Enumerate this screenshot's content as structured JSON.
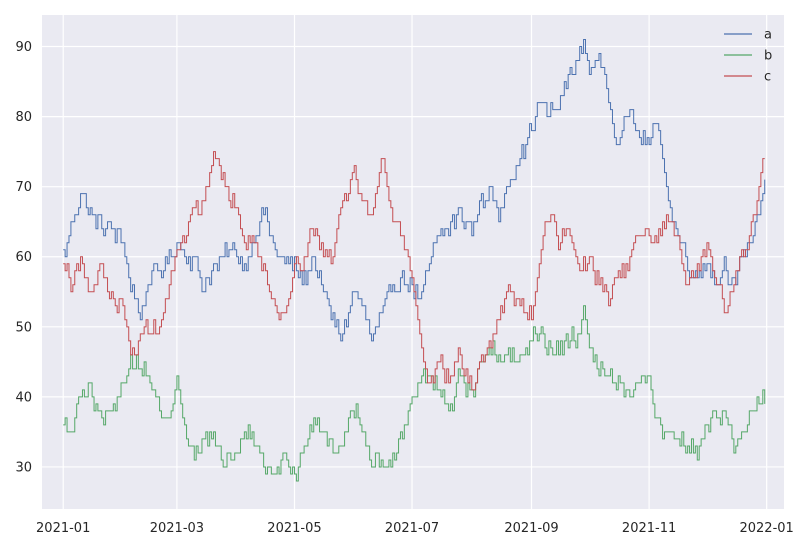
{
  "chart_data": {
    "type": "line",
    "x_start": "2021-01-01",
    "x_end": "2021-12-31",
    "x_step": "1 day",
    "xlim": [
      "2020-12-21",
      "2022-01-10"
    ],
    "ylim": [
      24,
      94.5
    ],
    "x_ticks": [
      "2021-01",
      "2021-03",
      "2021-05",
      "2021-07",
      "2021-09",
      "2021-11",
      "2022-01"
    ],
    "y_ticks": [
      30,
      40,
      50,
      60,
      70,
      80,
      90
    ],
    "title": "",
    "xlabel": "",
    "ylabel": "",
    "grid": true,
    "legend_position": "top-right",
    "series": [
      {
        "name": "a",
        "color": "#4c72b0",
        "keypoints": [
          [
            "2021-01-01",
            60
          ],
          [
            "2021-01-05",
            65
          ],
          [
            "2021-01-10",
            69
          ],
          [
            "2021-01-15",
            66
          ],
          [
            "2021-01-25",
            64
          ],
          [
            "2021-02-01",
            62
          ],
          [
            "2021-02-05",
            56
          ],
          [
            "2021-02-10",
            52
          ],
          [
            "2021-02-15",
            57
          ],
          [
            "2021-02-20",
            58
          ],
          [
            "2021-03-01",
            62
          ],
          [
            "2021-03-10",
            59
          ],
          [
            "2021-03-15",
            56
          ],
          [
            "2021-03-25",
            60
          ],
          [
            "2021-04-01",
            61
          ],
          [
            "2021-04-05",
            58
          ],
          [
            "2021-04-10",
            63
          ],
          [
            "2021-04-15",
            66
          ],
          [
            "2021-04-20",
            62
          ],
          [
            "2021-04-25",
            59
          ],
          [
            "2021-05-01",
            59
          ],
          [
            "2021-05-05",
            56
          ],
          [
            "2021-05-10",
            60
          ],
          [
            "2021-05-15",
            56
          ],
          [
            "2021-05-20",
            51
          ],
          [
            "2021-05-25",
            49
          ],
          [
            "2021-06-01",
            55
          ],
          [
            "2021-06-05",
            53
          ],
          [
            "2021-06-10",
            48
          ],
          [
            "2021-06-15",
            51
          ],
          [
            "2021-06-20",
            56
          ],
          [
            "2021-06-25",
            57
          ],
          [
            "2021-07-01",
            56
          ],
          [
            "2021-07-05",
            53
          ],
          [
            "2021-07-10",
            59
          ],
          [
            "2021-07-15",
            63
          ],
          [
            "2021-07-20",
            64
          ],
          [
            "2021-07-25",
            66
          ],
          [
            "2021-08-01",
            64
          ],
          [
            "2021-08-05",
            68
          ],
          [
            "2021-08-10",
            69
          ],
          [
            "2021-08-15",
            66
          ],
          [
            "2021-08-20",
            71
          ],
          [
            "2021-08-25",
            74
          ],
          [
            "2021-08-30",
            77
          ],
          [
            "2021-09-05",
            82
          ],
          [
            "2021-09-10",
            80
          ],
          [
            "2021-09-15",
            82
          ],
          [
            "2021-09-20",
            86
          ],
          [
            "2021-09-25",
            88
          ],
          [
            "2021-09-28",
            91
          ],
          [
            "2021-10-01",
            86
          ],
          [
            "2021-10-05",
            89
          ],
          [
            "2021-10-10",
            83
          ],
          [
            "2021-10-15",
            76
          ],
          [
            "2021-10-20",
            81
          ],
          [
            "2021-10-25",
            78
          ],
          [
            "2021-11-01",
            76
          ],
          [
            "2021-11-05",
            79
          ],
          [
            "2021-11-10",
            68
          ],
          [
            "2021-11-15",
            64
          ],
          [
            "2021-11-20",
            60
          ],
          [
            "2021-11-25",
            57
          ],
          [
            "2021-12-01",
            60
          ],
          [
            "2021-12-05",
            56
          ],
          [
            "2021-12-10",
            59
          ],
          [
            "2021-12-15",
            56
          ],
          [
            "2021-12-20",
            60
          ],
          [
            "2021-12-25",
            64
          ],
          [
            "2021-12-31",
            71
          ]
        ]
      },
      {
        "name": "b",
        "color": "#55a868",
        "keypoints": [
          [
            "2021-01-01",
            36
          ],
          [
            "2021-01-05",
            35
          ],
          [
            "2021-01-10",
            40
          ],
          [
            "2021-01-15",
            41
          ],
          [
            "2021-01-20",
            37
          ],
          [
            "2021-01-25",
            37
          ],
          [
            "2021-02-01",
            42
          ],
          [
            "2021-02-05",
            45
          ],
          [
            "2021-02-10",
            44
          ],
          [
            "2021-02-15",
            43
          ],
          [
            "2021-02-20",
            38
          ],
          [
            "2021-02-25",
            38
          ],
          [
            "2021-03-01",
            42
          ],
          [
            "2021-03-05",
            36
          ],
          [
            "2021-03-10",
            31
          ],
          [
            "2021-03-15",
            34
          ],
          [
            "2021-03-20",
            34
          ],
          [
            "2021-03-25",
            31
          ],
          [
            "2021-04-01",
            31
          ],
          [
            "2021-04-05",
            36
          ],
          [
            "2021-04-10",
            34
          ],
          [
            "2021-04-15",
            30
          ],
          [
            "2021-04-20",
            28
          ],
          [
            "2021-04-25",
            31
          ],
          [
            "2021-05-01",
            28
          ],
          [
            "2021-05-05",
            33
          ],
          [
            "2021-05-10",
            36
          ],
          [
            "2021-05-15",
            35
          ],
          [
            "2021-05-20",
            33
          ],
          [
            "2021-05-25",
            32
          ],
          [
            "2021-06-01",
            38
          ],
          [
            "2021-06-05",
            35
          ],
          [
            "2021-06-10",
            30
          ],
          [
            "2021-06-15",
            31
          ],
          [
            "2021-06-20",
            30
          ],
          [
            "2021-06-25",
            34
          ],
          [
            "2021-07-01",
            40
          ],
          [
            "2021-07-05",
            43
          ],
          [
            "2021-07-10",
            44
          ],
          [
            "2021-07-15",
            41
          ],
          [
            "2021-07-20",
            37
          ],
          [
            "2021-07-25",
            43
          ],
          [
            "2021-08-01",
            40
          ],
          [
            "2021-08-05",
            45
          ],
          [
            "2021-08-10",
            47
          ],
          [
            "2021-08-15",
            45
          ],
          [
            "2021-08-20",
            46
          ],
          [
            "2021-08-25",
            44
          ],
          [
            "2021-09-01",
            48
          ],
          [
            "2021-09-05",
            49
          ],
          [
            "2021-09-10",
            47
          ],
          [
            "2021-09-15",
            47
          ],
          [
            "2021-09-20",
            48
          ],
          [
            "2021-09-25",
            49
          ],
          [
            "2021-09-28",
            53
          ],
          [
            "2021-10-01",
            47
          ],
          [
            "2021-10-05",
            45
          ],
          [
            "2021-10-10",
            43
          ],
          [
            "2021-10-15",
            42
          ],
          [
            "2021-10-20",
            40
          ],
          [
            "2021-10-25",
            42
          ],
          [
            "2021-11-01",
            42
          ],
          [
            "2021-11-05",
            36
          ],
          [
            "2021-11-10",
            34
          ],
          [
            "2021-11-15",
            34
          ],
          [
            "2021-11-20",
            33
          ],
          [
            "2021-11-25",
            32
          ],
          [
            "2021-12-01",
            36
          ],
          [
            "2021-12-05",
            37
          ],
          [
            "2021-12-10",
            38
          ],
          [
            "2021-12-15",
            33
          ],
          [
            "2021-12-20",
            35
          ],
          [
            "2021-12-25",
            39
          ],
          [
            "2021-12-31",
            40
          ]
        ]
      },
      {
        "name": "c",
        "color": "#c44e52",
        "keypoints": [
          [
            "2021-01-01",
            59
          ],
          [
            "2021-01-05",
            56
          ],
          [
            "2021-01-10",
            60
          ],
          [
            "2021-01-15",
            54
          ],
          [
            "2021-01-20",
            59
          ],
          [
            "2021-01-25",
            54
          ],
          [
            "2021-02-01",
            53
          ],
          [
            "2021-02-05",
            45
          ],
          [
            "2021-02-10",
            49
          ],
          [
            "2021-02-15",
            50
          ],
          [
            "2021-02-20",
            50
          ],
          [
            "2021-02-25",
            56
          ],
          [
            "2021-03-01",
            60
          ],
          [
            "2021-03-05",
            62
          ],
          [
            "2021-03-10",
            67
          ],
          [
            "2021-03-15",
            67
          ],
          [
            "2021-03-20",
            74
          ],
          [
            "2021-03-25",
            71
          ],
          [
            "2021-04-01",
            66
          ],
          [
            "2021-04-05",
            62
          ],
          [
            "2021-04-10",
            62
          ],
          [
            "2021-04-15",
            59
          ],
          [
            "2021-04-20",
            53
          ],
          [
            "2021-04-25",
            51
          ],
          [
            "2021-05-01",
            59
          ],
          [
            "2021-05-05",
            59
          ],
          [
            "2021-05-10",
            65
          ],
          [
            "2021-05-15",
            61
          ],
          [
            "2021-05-20",
            59
          ],
          [
            "2021-05-25",
            67
          ],
          [
            "2021-06-01",
            72
          ],
          [
            "2021-06-05",
            68
          ],
          [
            "2021-06-10",
            66
          ],
          [
            "2021-06-15",
            75
          ],
          [
            "2021-06-20",
            66
          ],
          [
            "2021-06-25",
            64
          ],
          [
            "2021-07-01",
            56
          ],
          [
            "2021-07-05",
            47
          ],
          [
            "2021-07-10",
            42
          ],
          [
            "2021-07-15",
            45
          ],
          [
            "2021-07-20",
            42
          ],
          [
            "2021-07-25",
            46
          ],
          [
            "2021-08-01",
            41
          ],
          [
            "2021-08-05",
            44
          ],
          [
            "2021-08-10",
            47
          ],
          [
            "2021-08-15",
            51
          ],
          [
            "2021-08-20",
            55
          ],
          [
            "2021-08-25",
            53
          ],
          [
            "2021-09-01",
            52
          ],
          [
            "2021-09-05",
            60
          ],
          [
            "2021-09-08",
            67
          ],
          [
            "2021-09-15",
            62
          ],
          [
            "2021-09-20",
            64
          ],
          [
            "2021-09-25",
            59
          ],
          [
            "2021-10-01",
            59
          ],
          [
            "2021-10-05",
            57
          ],
          [
            "2021-10-10",
            54
          ],
          [
            "2021-10-15",
            57
          ],
          [
            "2021-10-20",
            59
          ],
          [
            "2021-10-25",
            63
          ],
          [
            "2021-11-01",
            63
          ],
          [
            "2021-11-05",
            62
          ],
          [
            "2021-11-10",
            66
          ],
          [
            "2021-11-15",
            63
          ],
          [
            "2021-11-20",
            57
          ],
          [
            "2021-11-25",
            58
          ],
          [
            "2021-12-01",
            61
          ],
          [
            "2021-12-05",
            58
          ],
          [
            "2021-12-10",
            52
          ],
          [
            "2021-12-15",
            57
          ],
          [
            "2021-12-20",
            61
          ],
          [
            "2021-12-25",
            65
          ],
          [
            "2021-12-28",
            72
          ],
          [
            "2021-12-31",
            73
          ]
        ]
      }
    ]
  }
}
